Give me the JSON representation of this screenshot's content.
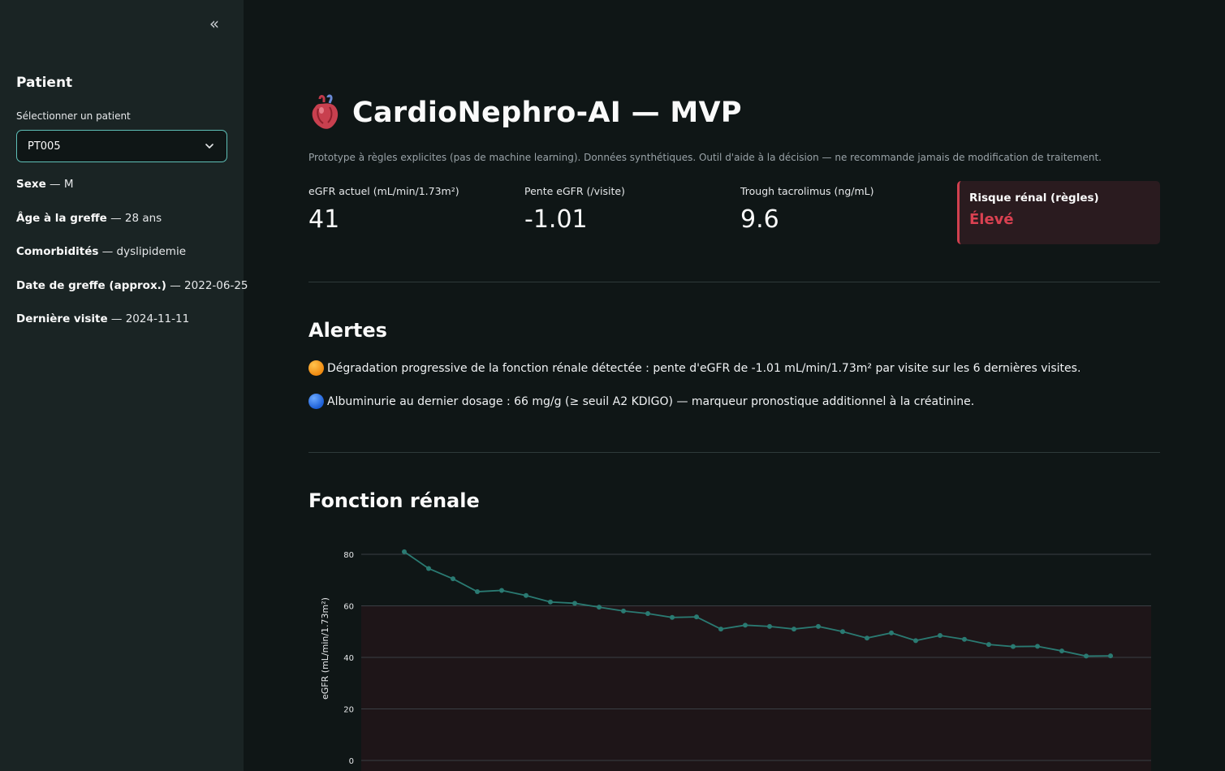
{
  "sidebar": {
    "collapse_icon": "double-chevron-left-icon",
    "title": "Patient",
    "select_label": "Sélectionner un patient",
    "select_value": "PT005",
    "info": [
      {
        "key": "Sexe",
        "value": " — M"
      },
      {
        "key": "Âge à la greffe",
        "value": " — 28 ans"
      },
      {
        "key": "Comorbidités",
        "value": " — dyslipidemie"
      },
      {
        "key": "Date de greffe (approx.)",
        "value": " — 2022-06-25"
      },
      {
        "key": "Dernière visite",
        "value": " — 2024-11-11"
      }
    ]
  },
  "header": {
    "icon": "anatomical-heart-icon",
    "title": "CardioNephro-AI — MVP",
    "caption": "Prototype à règles explicites (pas de machine learning). Données synthétiques. Outil d'aide à la décision — ne recommande jamais de modification de traitement."
  },
  "metrics": [
    {
      "label": "eGFR actuel (mL/min/1.73m²)",
      "value": "41"
    },
    {
      "label": "Pente eGFR (/visite)",
      "value": "-1.01"
    },
    {
      "label": "Trough tacrolimus (ng/mL)",
      "value": "9.6"
    }
  ],
  "risk": {
    "label": "Risque rénal (règles)",
    "value": "Élevé",
    "color": "#d94151"
  },
  "alerts": {
    "title": "Alertes",
    "items": [
      {
        "icon": "orange-circle-icon",
        "text": "Dégradation progressive de la fonction rénale détectée : pente d'eGFR de -1.01 mL/min/1.73m² par visite sur les 6 dernières visites."
      },
      {
        "icon": "blue-circle-icon",
        "text": "Albuminurie au dernier dosage : 66 mg/g (≥ seuil A2 KDIGO) — marqueur pronostique additionnel à la créatinine."
      }
    ]
  },
  "renal": {
    "title": "Fonction rénale"
  },
  "chart_data": {
    "type": "line",
    "ylabel": "eGFR (mL/min/1.73m²)",
    "xlabel": "",
    "ylim": [
      0,
      85
    ],
    "yticks": [
      0,
      20,
      40,
      60,
      80
    ],
    "grid": true,
    "shaded_band": [
      0,
      60
    ],
    "series": [
      {
        "values": [
          81,
          74.5,
          70.5,
          65.5,
          66,
          64,
          61.5,
          61,
          59.5,
          58,
          57,
          55.5,
          55.7,
          51,
          52.5,
          52,
          51,
          52,
          50,
          47.5,
          49.5,
          46.5,
          48.5,
          47,
          45,
          44.2,
          44.3,
          42.5,
          40.5,
          40.6
        ]
      }
    ],
    "colors": {
      "line": "#2a7a72",
      "band": "#1e1518"
    }
  }
}
